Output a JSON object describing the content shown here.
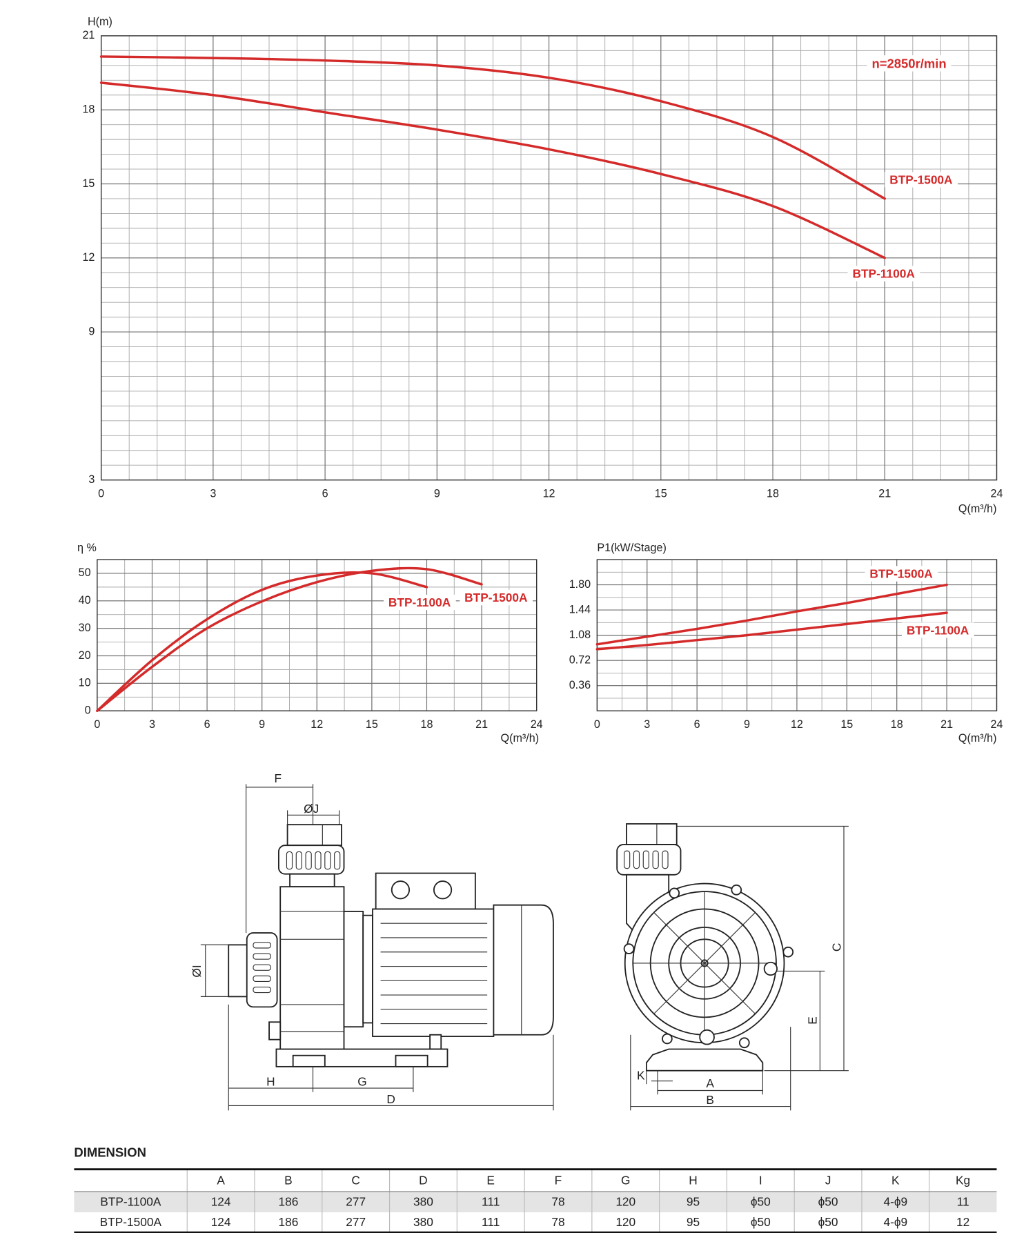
{
  "chart_data": [
    {
      "type": "line",
      "x_label": "Q(m³/h)",
      "y_label": "H(m)",
      "x": [
        0,
        3,
        6,
        9,
        12,
        15,
        18,
        21
      ],
      "series": [
        {
          "name": "BTP-1500A",
          "color": "#d42a2a",
          "values": [
            20.16,
            20.1,
            20.0,
            19.8,
            19.3,
            18.35,
            16.9,
            14.4
          ]
        },
        {
          "name": "BTP-1100A",
          "color": "#d42a2a",
          "values": [
            19.1,
            18.6,
            17.9,
            17.2,
            16.4,
            15.4,
            14.1,
            12.0
          ]
        }
      ],
      "annotation": "n=2850r/min",
      "xlim": [
        0,
        24
      ],
      "xticks": [
        0,
        3,
        6,
        9,
        12,
        15,
        18,
        21,
        24
      ],
      "ylim": [
        3,
        21
      ],
      "yticks": [
        3,
        9,
        12,
        15,
        18,
        21
      ],
      "grid": true
    },
    {
      "type": "line",
      "x_label": "Q(m³/h)",
      "y_label": "η %",
      "x": [
        0,
        3,
        6,
        9,
        12,
        15,
        18,
        21
      ],
      "series": [
        {
          "name": "BTP-1100A",
          "color": "#d42a2a",
          "values": [
            0,
            18.4,
            33.3,
            44,
            49.2,
            50,
            45,
            null
          ]
        },
        {
          "name": "BTP-1500A",
          "color": "#d42a2a",
          "values": [
            0,
            16,
            30,
            39.8,
            46.8,
            50.9,
            51.5,
            46
          ]
        }
      ],
      "xlim": [
        0,
        24
      ],
      "xticks": [
        0,
        3,
        6,
        9,
        12,
        15,
        18,
        21,
        24
      ],
      "ylim": [
        0,
        55
      ],
      "yticks": [
        0,
        10,
        20,
        30,
        40,
        50
      ],
      "grid": true
    },
    {
      "type": "line",
      "x_label": "Q(m³/h)",
      "y_label": "P1(kW/Stage)",
      "x": [
        0,
        3,
        6,
        9,
        12,
        15,
        18,
        21
      ],
      "series": [
        {
          "name": "BTP-1500A",
          "color": "#d42a2a",
          "values": [
            0.95,
            1.06,
            1.17,
            1.29,
            1.42,
            1.54,
            1.67,
            1.8
          ]
        },
        {
          "name": "BTP-1100A",
          "color": "#d42a2a",
          "values": [
            0.88,
            0.94,
            1.01,
            1.08,
            1.16,
            1.24,
            1.32,
            1.4
          ]
        }
      ],
      "xlim": [
        0,
        24
      ],
      "xticks": [
        0,
        3,
        6,
        9,
        12,
        15,
        18,
        21,
        24
      ],
      "ylim": [
        0,
        2.16
      ],
      "yticks": [
        0.36,
        0.72,
        1.08,
        1.44,
        {
          "value": 1.8,
          "label": "1.80"
        }
      ],
      "grid": true
    }
  ],
  "drawing": {
    "side_view": [
      "F",
      "ØJ",
      "ØI",
      "H",
      "G",
      "D"
    ],
    "end_view": [
      "C",
      "E",
      "K",
      "A",
      "B"
    ]
  },
  "table": {
    "title": "DIMENSION",
    "columns": [
      "A",
      "B",
      "C",
      "D",
      "E",
      "F",
      "G",
      "H",
      "I",
      "J",
      "K",
      "Kg"
    ],
    "rows": [
      {
        "model": "BTP-1100A",
        "values": [
          124,
          186,
          277,
          380,
          111,
          78,
          120,
          95,
          "ϕ50",
          "ϕ50",
          "4-ϕ9",
          11
        ]
      },
      {
        "model": "BTP-1500A",
        "values": [
          124,
          186,
          277,
          380,
          111,
          78,
          120,
          95,
          "ϕ50",
          "ϕ50",
          "4-ϕ9",
          12
        ]
      }
    ]
  }
}
